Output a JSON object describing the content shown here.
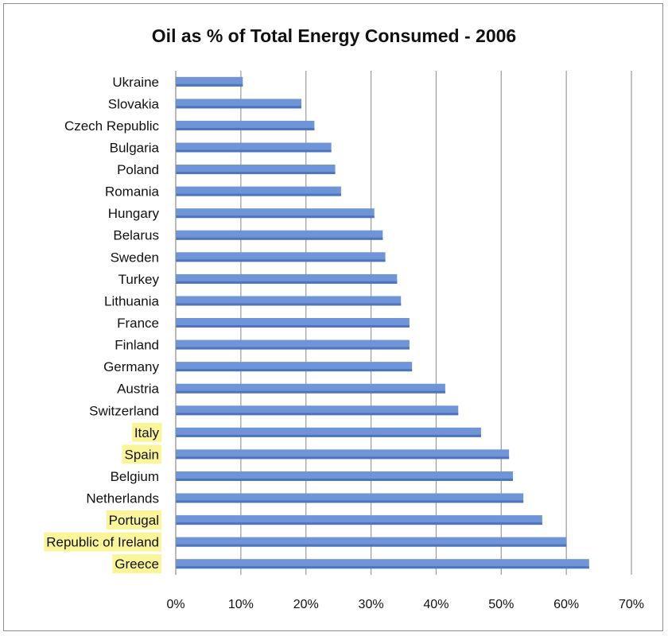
{
  "chart_data": {
    "type": "bar",
    "orientation": "horizontal",
    "title": "Oil as % of Total Energy Consumed - 2006",
    "xlabel": "",
    "ylabel": "",
    "xlim": [
      0,
      70
    ],
    "xticks": [
      0,
      10,
      20,
      30,
      40,
      50,
      60,
      70
    ],
    "xtick_labels": [
      "0%",
      "10%",
      "20%",
      "30%",
      "40%",
      "50%",
      "60%",
      "70%"
    ],
    "grid": "vertical",
    "legend": "none",
    "categories": [
      "Ukraine",
      "Slovakia",
      "Czech Republic",
      "Bulgaria",
      "Poland",
      "Romania",
      "Hungary",
      "Belarus",
      "Sweden",
      "Turkey",
      "Lithuania",
      "France",
      "Finland",
      "Germany",
      "Austria",
      "Switzerland",
      "Italy",
      "Spain",
      "Belgium",
      "Netherlands",
      "Portugal",
      "Republic of Ireland",
      "Greece"
    ],
    "values": [
      10.3,
      19.3,
      21.3,
      23.9,
      24.5,
      25.4,
      30.5,
      31.8,
      32.2,
      34.0,
      34.6,
      35.9,
      35.9,
      36.3,
      41.4,
      43.4,
      46.9,
      51.2,
      51.8,
      53.4,
      56.3,
      60.0,
      63.5
    ],
    "highlighted": [
      "Italy",
      "Spain",
      "Portugal",
      "Republic of Ireland",
      "Greece"
    ],
    "colors": {
      "bar": "#6f95d8",
      "bar_shade": "#4e74bd",
      "highlight": "#fbf59a",
      "grid": "#9a9a9a",
      "axis": "#8c8c8c"
    }
  }
}
